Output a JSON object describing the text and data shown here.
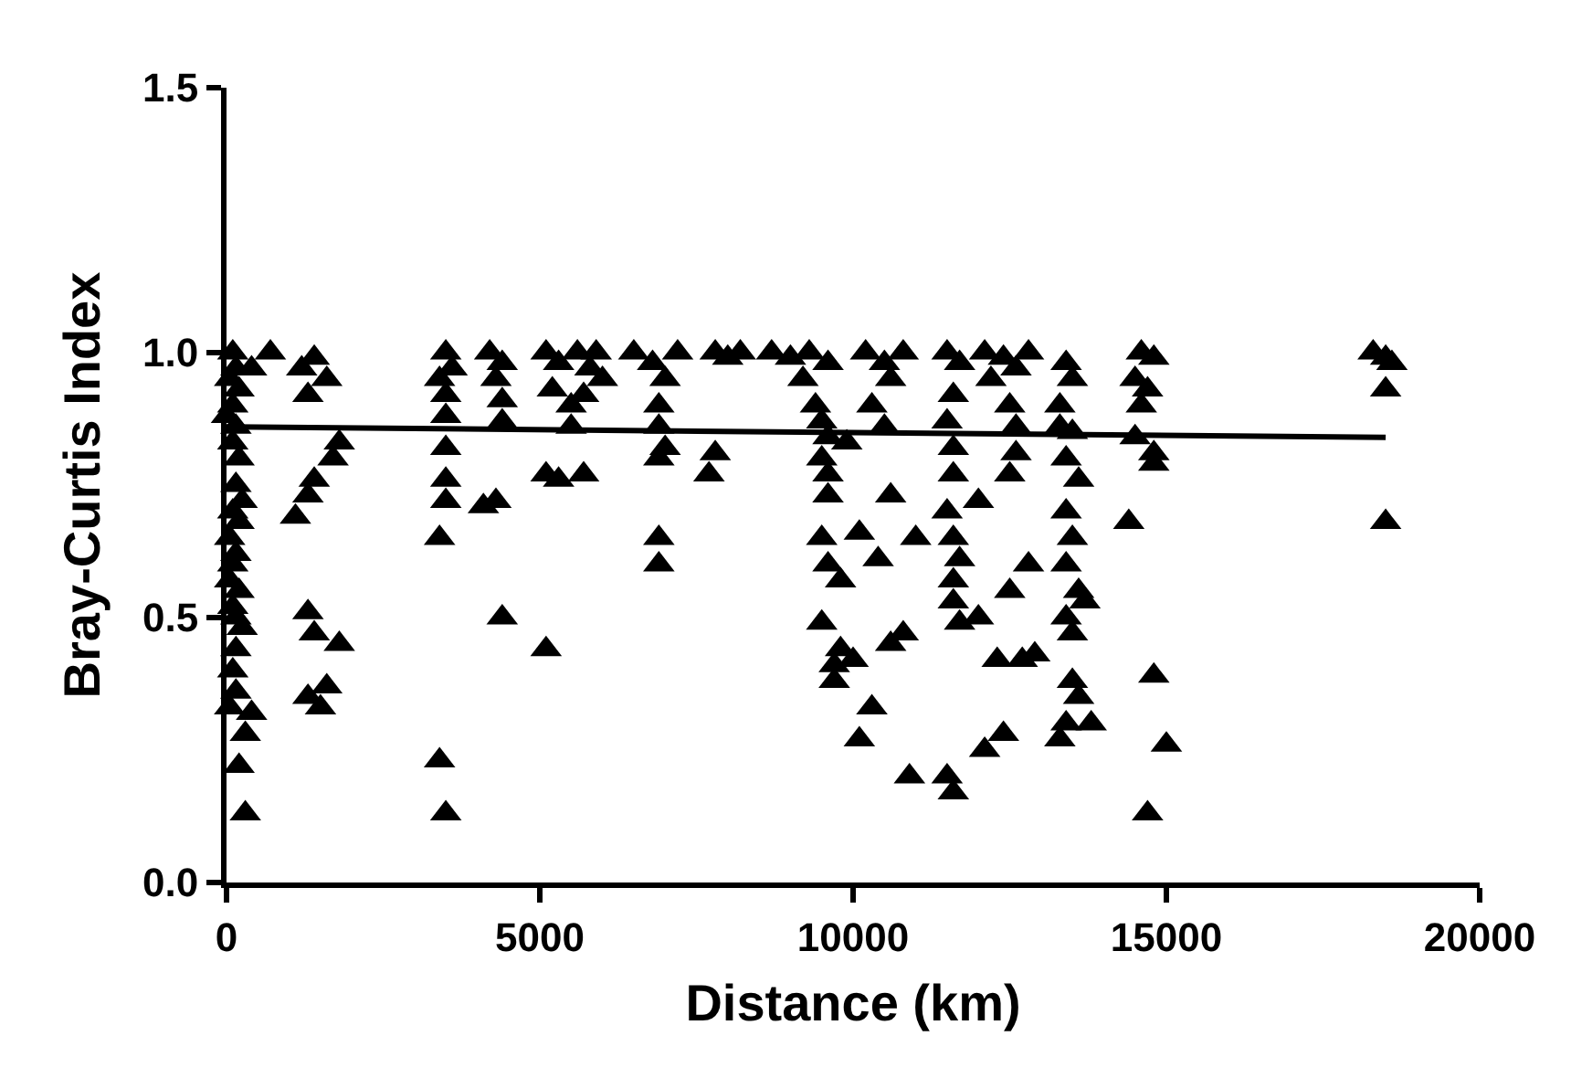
{
  "chart_data": {
    "type": "scatter",
    "xlabel": "Distance (km)",
    "ylabel": "Bray-Curtis Index",
    "xlim": [
      0,
      20000
    ],
    "xticks": [
      0,
      5000,
      10000,
      15000,
      20000
    ],
    "ylim": [
      0,
      1.5
    ],
    "yticks": [
      {
        "value": 0,
        "label": "0.0"
      },
      {
        "value": 0.5,
        "label": "0.5"
      },
      {
        "value": 1,
        "label": "1.0"
      },
      {
        "value": 1.5,
        "label": "1.5"
      }
    ],
    "grid": false,
    "legend": false,
    "marker": "triangle",
    "series": [
      {
        "color": "#000000",
        "x": [
          100,
          150,
          50,
          200,
          100,
          0,
          150,
          100,
          200,
          150,
          250,
          100,
          200,
          50,
          150,
          100,
          50,
          200,
          100,
          150,
          250,
          150,
          100,
          150,
          50,
          400,
          300,
          200,
          300,
          700,
          400,
          1200,
          1400,
          1600,
          1300,
          1800,
          1700,
          1400,
          1300,
          1100,
          1300,
          1400,
          1800,
          1300,
          1600,
          1500,
          3500,
          3600,
          3400,
          3500,
          3500,
          3500,
          3500,
          3500,
          3400,
          3400,
          3500,
          4200,
          4400,
          4300,
          4400,
          4400,
          4100,
          4300,
          4400,
          5100,
          5300,
          5600,
          5800,
          5900,
          5200,
          5500,
          5700,
          5100,
          5700,
          5300,
          5100,
          5500,
          6000,
          6500,
          6800,
          7000,
          7200,
          6900,
          6900,
          6900,
          6900,
          6900,
          7000,
          7800,
          8000,
          8200,
          7800,
          7700,
          8700,
          9000,
          9300,
          9600,
          9200,
          9400,
          9500,
          9600,
          9500,
          9600,
          9600,
          9500,
          9600,
          9800,
          9500,
          9700,
          9800,
          9700,
          9900,
          10200,
          10500,
          10800,
          10600,
          10300,
          10500,
          10100,
          10600,
          10000,
          10100,
          10300,
          10600,
          10800,
          10900,
          11000,
          10400,
          11500,
          11700,
          11600,
          11500,
          11600,
          11600,
          11500,
          11600,
          11700,
          11600,
          11600,
          11700,
          11500,
          11600,
          12000,
          12000,
          12100,
          12400,
          12600,
          12800,
          12200,
          12500,
          12600,
          12600,
          12500,
          12500,
          12300,
          12700,
          12400,
          12100,
          12800,
          12900,
          13400,
          13500,
          13300,
          13500,
          13400,
          13600,
          13400,
          13500,
          13400,
          13600,
          13400,
          13500,
          13700,
          13500,
          13600,
          13400,
          13300,
          13800,
          13300,
          14600,
          14800,
          14500,
          14700,
          14600,
          14500,
          14800,
          14800,
          14400,
          14800,
          15000,
          14700,
          18300,
          18500,
          18600,
          18500,
          18500
        ],
        "values": [
          1.0,
          0.97,
          0.95,
          0.93,
          0.9,
          0.88,
          0.86,
          0.83,
          0.8,
          0.75,
          0.72,
          0.7,
          0.68,
          0.65,
          0.62,
          0.6,
          0.57,
          0.55,
          0.52,
          0.5,
          0.48,
          0.44,
          0.4,
          0.36,
          0.33,
          0.32,
          0.28,
          0.22,
          0.13,
          1.0,
          0.97,
          0.97,
          0.99,
          0.95,
          0.92,
          0.83,
          0.8,
          0.76,
          0.73,
          0.69,
          0.51,
          0.47,
          0.45,
          0.35,
          0.37,
          0.33,
          1.0,
          0.97,
          0.95,
          0.92,
          0.88,
          0.82,
          0.76,
          0.72,
          0.65,
          0.23,
          0.13,
          1.0,
          0.98,
          0.95,
          0.91,
          0.87,
          0.71,
          0.72,
          0.5,
          1.0,
          0.98,
          1.0,
          0.97,
          1.0,
          0.93,
          0.9,
          0.92,
          0.77,
          0.77,
          0.76,
          0.44,
          0.86,
          0.95,
          1.0,
          0.98,
          0.95,
          1.0,
          0.9,
          0.86,
          0.8,
          0.65,
          0.6,
          0.82,
          1.0,
          0.99,
          1.0,
          0.81,
          0.77,
          1.0,
          0.99,
          1.0,
          0.98,
          0.95,
          0.9,
          0.87,
          0.84,
          0.8,
          0.77,
          0.73,
          0.65,
          0.6,
          0.57,
          0.49,
          0.41,
          0.44,
          0.38,
          0.83,
          1.0,
          0.98,
          1.0,
          0.95,
          0.9,
          0.86,
          0.66,
          0.73,
          0.42,
          0.27,
          0.33,
          0.45,
          0.47,
          0.2,
          0.65,
          0.61,
          1.0,
          0.98,
          0.92,
          0.87,
          0.82,
          0.77,
          0.7,
          0.65,
          0.61,
          0.57,
          0.53,
          0.49,
          0.2,
          0.17,
          0.72,
          0.5,
          1.0,
          0.99,
          0.97,
          1.0,
          0.95,
          0.9,
          0.86,
          0.81,
          0.77,
          0.55,
          0.42,
          0.42,
          0.28,
          0.25,
          0.6,
          0.43,
          0.98,
          0.95,
          0.9,
          0.85,
          0.8,
          0.76,
          0.7,
          0.65,
          0.6,
          0.55,
          0.5,
          0.47,
          0.53,
          0.38,
          0.35,
          0.3,
          0.27,
          0.3,
          0.86,
          1.0,
          0.99,
          0.95,
          0.93,
          0.9,
          0.84,
          0.81,
          0.79,
          0.68,
          0.39,
          0.26,
          0.13,
          1.0,
          0.99,
          0.98,
          0.93,
          0.68
        ]
      },
      {
        "type": "line",
        "color": "#000000",
        "marker": "none",
        "line_style": "solid",
        "x": [
          0,
          18500
        ],
        "values": [
          0.86,
          0.84
        ]
      }
    ]
  }
}
